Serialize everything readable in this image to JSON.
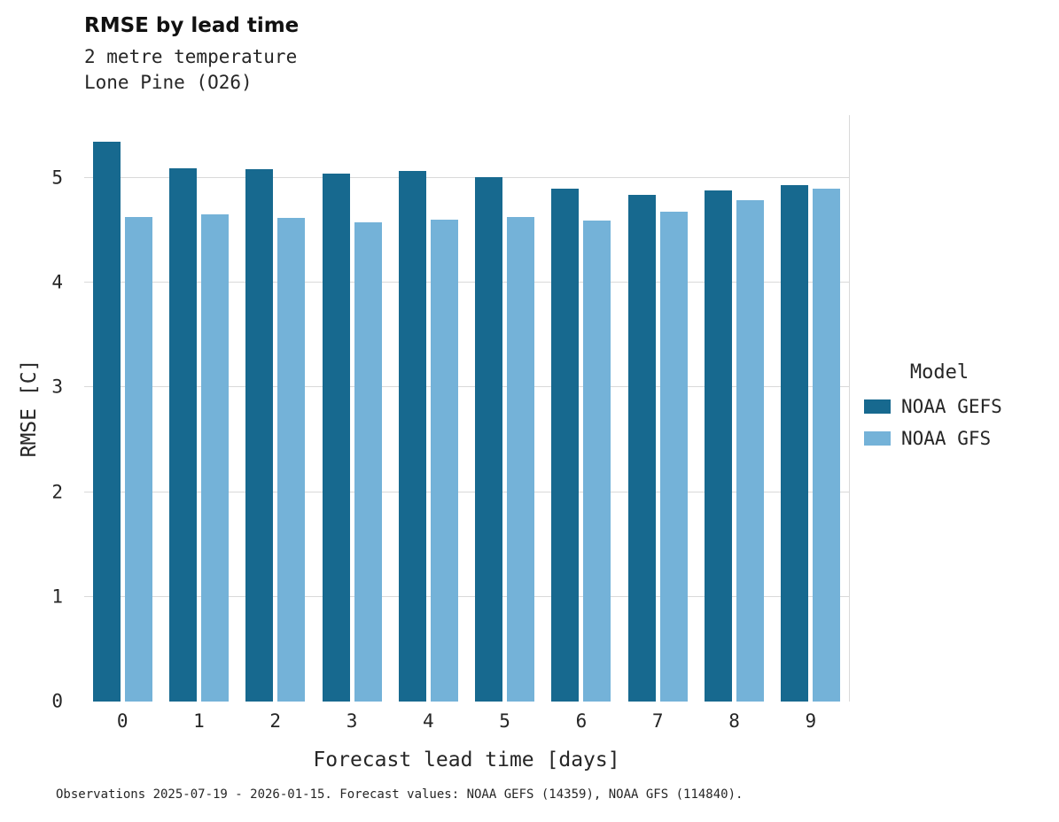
{
  "title": "RMSE by lead time",
  "subtitle_line1": "2 metre temperature",
  "subtitle_line2": "Lone Pine (O26)",
  "caption": "Observations 2025-07-19 - 2026-01-15. Forecast values: NOAA GEFS (14359), NOAA GFS (114840).",
  "legend": {
    "title": "Model",
    "entries": [
      {
        "label": "NOAA GEFS",
        "color": "#17698f"
      },
      {
        "label": "NOAA GFS",
        "color": "#74b2d8"
      }
    ]
  },
  "chart_data": {
    "type": "bar",
    "title": "RMSE by lead time",
    "subtitle": [
      "2 metre temperature",
      "Lone Pine (O26)"
    ],
    "categories": [
      "0",
      "1",
      "2",
      "3",
      "4",
      "5",
      "6",
      "7",
      "8",
      "9"
    ],
    "series": [
      {
        "name": "NOAA GEFS",
        "color": "#17698f",
        "values": [
          5.35,
          5.09,
          5.08,
          5.04,
          5.07,
          5.01,
          4.9,
          4.84,
          4.88,
          4.93
        ]
      },
      {
        "name": "NOAA GFS",
        "color": "#74b2d8",
        "values": [
          4.63,
          4.65,
          4.62,
          4.58,
          4.6,
          4.63,
          4.59,
          4.68,
          4.79,
          4.9
        ]
      }
    ],
    "xlabel": "Forecast lead time [days]",
    "ylabel": "RMSE [C]",
    "ylim": [
      0,
      5.6
    ],
    "yticks": [
      0,
      1,
      2,
      3,
      4,
      5
    ],
    "grid": "horizontal",
    "legend_title": "Model",
    "legend_position": "right"
  }
}
